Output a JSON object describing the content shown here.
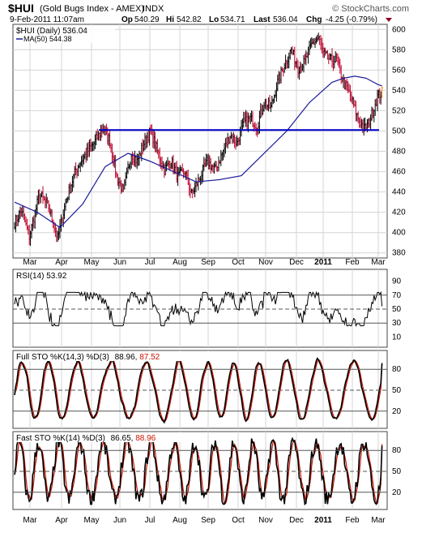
{
  "header": {
    "symbol": "$HUI",
    "name": "(Gold Bugs Index - AMEX)",
    "exchange": "INDX",
    "watermark": "© StockCharts.com",
    "date": "9-Feb-2011 11:07am",
    "op_label": "Op",
    "op": "540.29",
    "hi_label": "Hi",
    "hi": "542.82",
    "lo_label": "Lo",
    "lo": "534.71",
    "last_label": "Last",
    "last": "536.04",
    "chg_label": "Chg",
    "chg": "-4.25 (-0.79%)"
  },
  "colors": {
    "price_bar": "#000000",
    "price_bar_down": "#c0002a",
    "ma_line": "#1a1a9c",
    "support_line": "#0000cc",
    "last_bar": "#ff8800",
    "stoch_k": "#000000",
    "stoch_d": "#cc1100",
    "grid": "#d4d4d4"
  },
  "chart_data": [
    {
      "type": "line",
      "panel": "price",
      "legend": [
        "$HUI (Daily) 536.04",
        "MA(50) 544.38"
      ],
      "ylim": [
        375,
        605
      ],
      "yticks": [
        380,
        400,
        420,
        440,
        460,
        480,
        500,
        520,
        540,
        560,
        580,
        600
      ],
      "months": [
        "Mar",
        "Apr",
        "May",
        "Jun",
        "Jul",
        "Aug",
        "Sep",
        "Oct",
        "Nov",
        "Dec",
        "2011",
        "Feb",
        "Mar"
      ],
      "price_anchors": [
        [
          0,
          410
        ],
        [
          6,
          422
        ],
        [
          13,
          396
        ],
        [
          22,
          438
        ],
        [
          30,
          425
        ],
        [
          38,
          394
        ],
        [
          45,
          430
        ],
        [
          54,
          462
        ],
        [
          62,
          476
        ],
        [
          70,
          488
        ],
        [
          78,
          503
        ],
        [
          84,
          490
        ],
        [
          90,
          455
        ],
        [
          96,
          440
        ],
        [
          103,
          478
        ],
        [
          108,
          470
        ],
        [
          114,
          488
        ],
        [
          120,
          500
        ],
        [
          126,
          480
        ],
        [
          132,
          462
        ],
        [
          138,
          470
        ],
        [
          144,
          455
        ],
        [
          150,
          460
        ],
        [
          156,
          438
        ],
        [
          163,
          453
        ],
        [
          170,
          470
        ],
        [
          177,
          462
        ],
        [
          184,
          480
        ],
        [
          190,
          496
        ],
        [
          196,
          488
        ],
        [
          202,
          508
        ],
        [
          208,
          512
        ],
        [
          214,
          505
        ],
        [
          220,
          528
        ],
        [
          226,
          523
        ],
        [
          232,
          548
        ],
        [
          238,
          565
        ],
        [
          244,
          580
        ],
        [
          250,
          562
        ],
        [
          256,
          568
        ],
        [
          262,
          585
        ],
        [
          268,
          592
        ],
        [
          272,
          576
        ],
        [
          278,
          570
        ],
        [
          284,
          570
        ],
        [
          290,
          548
        ],
        [
          296,
          535
        ],
        [
          302,
          515
        ],
        [
          308,
          502
        ],
        [
          312,
          507
        ],
        [
          316,
          520
        ],
        [
          320,
          534
        ],
        [
          324,
          538
        ]
      ],
      "ma_anchors": [
        [
          0,
          430
        ],
        [
          20,
          420
        ],
        [
          40,
          405
        ],
        [
          60,
          428
        ],
        [
          80,
          465
        ],
        [
          100,
          478
        ],
        [
          120,
          470
        ],
        [
          140,
          460
        ],
        [
          160,
          450
        ],
        [
          180,
          452
        ],
        [
          200,
          456
        ],
        [
          220,
          478
        ],
        [
          240,
          500
        ],
        [
          260,
          528
        ],
        [
          280,
          548
        ],
        [
          290,
          552
        ],
        [
          300,
          554
        ],
        [
          310,
          552
        ],
        [
          320,
          546
        ],
        [
          324,
          544.38
        ]
      ],
      "support_level": 501
    },
    {
      "type": "line",
      "panel": "rsi",
      "legend": "RSI(14) 53.92",
      "ylim": [
        0,
        100
      ],
      "yticks": [
        10,
        30,
        50,
        70,
        90
      ],
      "levels": [
        30,
        50,
        70
      ],
      "last_value": 53.92
    },
    {
      "type": "line",
      "panel": "full_sto",
      "legend_prefix": "Full STO %K(14,3) %D(3)",
      "k_last": "88.96",
      "d_last": "87.52",
      "ylim": [
        0,
        100
      ],
      "yticks": [
        20,
        50,
        80
      ],
      "levels": [
        20,
        50,
        80
      ]
    },
    {
      "type": "line",
      "panel": "fast_sto",
      "legend_prefix": "Fast STO %K(14) %D(3)",
      "k_last": "86.65",
      "d_last": "88.96",
      "ylim": [
        0,
        100
      ],
      "yticks": [
        20,
        50,
        80
      ],
      "levels": [
        20,
        50,
        80
      ]
    }
  ]
}
